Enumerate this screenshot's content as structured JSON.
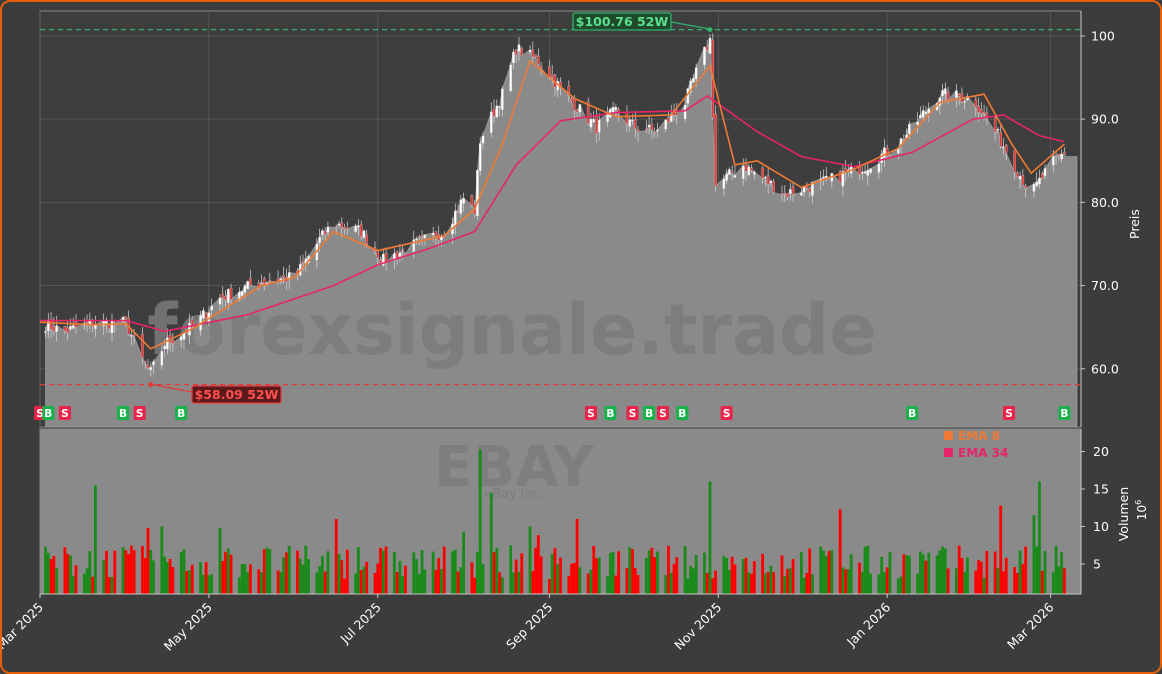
{
  "chart_data": {
    "type": "candlestick",
    "ticker": "EBAY",
    "company": "eBay Inc.",
    "watermark": "forexsignale.trade",
    "ylabel": "Preis",
    "volume_label": "Volumen",
    "volume_unit": "10",
    "volume_unit_exp": "6",
    "ylim": [
      53,
      103
    ],
    "yticks": [
      60,
      70,
      80,
      90,
      100
    ],
    "ytick_labels": [
      "60.0",
      "70.0",
      "80.0",
      "90.0",
      "100"
    ],
    "vol_ylim": [
      1,
      23
    ],
    "vol_ticks": [
      5,
      10,
      15,
      20
    ],
    "x_start": "2025-03-01",
    "x_end": "2026-03-12",
    "xtick_labels": [
      {
        "date": "2025-03-01",
        "label": "Mar 2025"
      },
      {
        "date": "2025-05-01",
        "label": "May 2025"
      },
      {
        "date": "2025-07-01",
        "label": "Jul 2025"
      },
      {
        "date": "2025-09-01",
        "label": "Sep 2025"
      },
      {
        "date": "2025-11-01",
        "label": "Nov 2025"
      },
      {
        "date": "2026-01-01",
        "label": "Jan 2026"
      },
      {
        "date": "2026-03-01",
        "label": "Mar 2026"
      }
    ],
    "price_path": [
      [
        "2025-03-01",
        65.5
      ],
      [
        "2025-03-10",
        64.5
      ],
      [
        "2025-03-20",
        65.5
      ],
      [
        "2025-04-01",
        65.5
      ],
      [
        "2025-04-07",
        61.0
      ],
      [
        "2025-04-10",
        59.5
      ],
      [
        "2025-04-15",
        63.0
      ],
      [
        "2025-04-25",
        65.0
      ],
      [
        "2025-05-05",
        68.5
      ],
      [
        "2025-05-20",
        70.5
      ],
      [
        "2025-06-01",
        71.0
      ],
      [
        "2025-06-10",
        75.5
      ],
      [
        "2025-06-15",
        77.5
      ],
      [
        "2025-06-25",
        76.5
      ],
      [
        "2025-07-03",
        73.0
      ],
      [
        "2025-07-15",
        75.0
      ],
      [
        "2025-07-25",
        76.5
      ],
      [
        "2025-08-01",
        80.5
      ],
      [
        "2025-08-05",
        79.0
      ],
      [
        "2025-08-07",
        87.5
      ],
      [
        "2025-08-15",
        93.0
      ],
      [
        "2025-08-20",
        98.5
      ],
      [
        "2025-08-28",
        97.0
      ],
      [
        "2025-09-08",
        92.5
      ],
      [
        "2025-09-18",
        89.0
      ],
      [
        "2025-09-25",
        91.0
      ],
      [
        "2025-10-02",
        89.0
      ],
      [
        "2025-10-10",
        88.5
      ],
      [
        "2025-10-20",
        92.0
      ],
      [
        "2025-10-25",
        96.5
      ],
      [
        "2025-10-29",
        99.5
      ],
      [
        "2025-10-31",
        82.0
      ],
      [
        "2025-11-10",
        84.5
      ],
      [
        "2025-11-25",
        81.0
      ],
      [
        "2025-12-10",
        82.5
      ],
      [
        "2025-12-25",
        84.5
      ],
      [
        "2026-01-05",
        87.0
      ],
      [
        "2026-01-20",
        93.0
      ],
      [
        "2026-02-01",
        92.5
      ],
      [
        "2026-02-10",
        88.0
      ],
      [
        "2026-02-15",
        85.0
      ],
      [
        "2026-02-22",
        81.0
      ],
      [
        "2026-03-01",
        84.5
      ],
      [
        "2026-03-06",
        86.0
      ]
    ],
    "close_last": 85.5,
    "ema8": [
      [
        "2025-03-01",
        65.6
      ],
      [
        "2025-03-20",
        65.3
      ],
      [
        "2025-04-01",
        65.4
      ],
      [
        "2025-04-10",
        62.4
      ],
      [
        "2025-04-25",
        64.8
      ],
      [
        "2025-05-20",
        70.0
      ],
      [
        "2025-06-01",
        71.0
      ],
      [
        "2025-06-15",
        76.5
      ],
      [
        "2025-07-01",
        74.2
      ],
      [
        "2025-07-25",
        76.0
      ],
      [
        "2025-08-05",
        79.2
      ],
      [
        "2025-08-15",
        87.0
      ],
      [
        "2025-08-25",
        97.0
      ],
      [
        "2025-09-10",
        92.5
      ],
      [
        "2025-09-25",
        90.3
      ],
      [
        "2025-10-15",
        90.5
      ],
      [
        "2025-10-29",
        96.4
      ],
      [
        "2025-11-07",
        84.5
      ],
      [
        "2025-11-15",
        85.0
      ],
      [
        "2025-12-01",
        81.8
      ],
      [
        "2025-12-20",
        84.0
      ],
      [
        "2026-01-05",
        86.5
      ],
      [
        "2026-01-20",
        92.0
      ],
      [
        "2026-02-05",
        93.0
      ],
      [
        "2026-02-15",
        87.0
      ],
      [
        "2026-02-22",
        83.5
      ],
      [
        "2026-03-06",
        87.0
      ]
    ],
    "ema34": [
      [
        "2025-03-01",
        65.8
      ],
      [
        "2025-04-01",
        65.8
      ],
      [
        "2025-04-15",
        64.5
      ],
      [
        "2025-05-15",
        66.5
      ],
      [
        "2025-06-15",
        70.0
      ],
      [
        "2025-07-01",
        72.5
      ],
      [
        "2025-07-20",
        74.5
      ],
      [
        "2025-08-05",
        76.5
      ],
      [
        "2025-08-20",
        84.5
      ],
      [
        "2025-09-05",
        89.8
      ],
      [
        "2025-09-25",
        90.8
      ],
      [
        "2025-10-20",
        91.0
      ],
      [
        "2025-10-28",
        92.8
      ],
      [
        "2025-11-15",
        88.5
      ],
      [
        "2025-12-01",
        85.5
      ],
      [
        "2025-12-20",
        84.3
      ],
      [
        "2026-01-10",
        86.0
      ],
      [
        "2026-02-01",
        90.0
      ],
      [
        "2026-02-12",
        90.5
      ],
      [
        "2026-02-25",
        88.0
      ],
      [
        "2026-03-06",
        87.3
      ]
    ],
    "high_52w": {
      "value": 100.76,
      "date": "2025-10-29",
      "label": "$100.76 52W"
    },
    "low_52w": {
      "value": 58.09,
      "date": "2025-04-10",
      "label": "$58.09 52W"
    },
    "signals": [
      {
        "date": "2025-03-01",
        "type": "S"
      },
      {
        "date": "2025-03-04",
        "type": "B"
      },
      {
        "date": "2025-03-10",
        "type": "S"
      },
      {
        "date": "2025-03-31",
        "type": "B"
      },
      {
        "date": "2025-04-06",
        "type": "S"
      },
      {
        "date": "2025-04-21",
        "type": "B"
      },
      {
        "date": "2025-09-16",
        "type": "S"
      },
      {
        "date": "2025-09-23",
        "type": "B"
      },
      {
        "date": "2025-10-01",
        "type": "S"
      },
      {
        "date": "2025-10-07",
        "type": "B"
      },
      {
        "date": "2025-10-12",
        "type": "S"
      },
      {
        "date": "2025-10-19",
        "type": "B"
      },
      {
        "date": "2025-11-04",
        "type": "S"
      },
      {
        "date": "2026-01-10",
        "type": "B"
      },
      {
        "date": "2026-02-14",
        "type": "S"
      },
      {
        "date": "2026-03-06",
        "type": "B"
      }
    ],
    "legend": [
      {
        "label": "EMA 8",
        "color": "#f07a34"
      },
      {
        "label": "EMA 34",
        "color": "#e8246a"
      }
    ],
    "volume_spikes": [
      [
        "2025-03-22",
        15.5
      ],
      [
        "2025-08-08",
        20.3
      ],
      [
        "2025-08-11",
        14.5
      ],
      [
        "2025-10-30",
        16.0
      ],
      [
        "2025-09-12",
        11.0
      ],
      [
        "2025-12-15",
        12.3
      ],
      [
        "2026-02-26",
        16.0
      ],
      [
        "2026-02-24",
        11.5
      ],
      [
        "2026-02-12",
        12.8
      ],
      [
        "2025-06-15",
        11.0
      ],
      [
        "2025-08-25",
        10.0
      ],
      [
        "2025-04-14",
        10.0
      ],
      [
        "2025-04-10",
        9.8
      ],
      [
        "2025-05-05",
        9.8
      ]
    ],
    "colors": {
      "up": "#1a8a1a",
      "down": "#ff0000",
      "area": "#8a8a8a",
      "high_line": "#2db36a",
      "low_line": "#e03a3a",
      "panel_bg": "#3c3c3c",
      "plot_bg": "#3e3e3e",
      "border": "#e8600a"
    }
  }
}
